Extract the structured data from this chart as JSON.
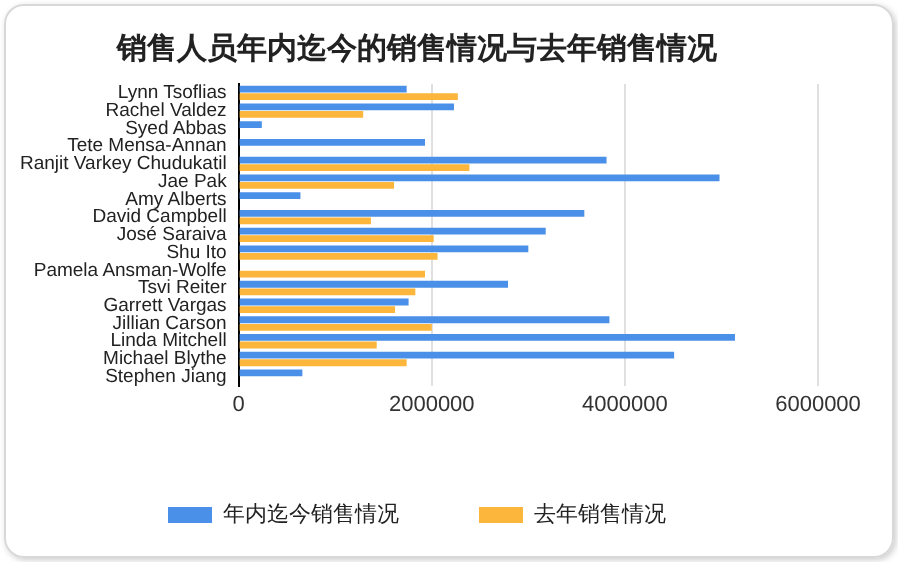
{
  "chart_data": {
    "type": "bar",
    "orientation": "horizontal",
    "title": "销售人员年内迄今的销售情况与去年销售情况",
    "categories": [
      "Lynn Tsoflias",
      "Rachel Valdez",
      "Syed Abbas",
      "Tete Mensa-Annan",
      "Ranjit Varkey Chudukatil",
      "Jae Pak",
      "Amy Alberts",
      "David Campbell",
      "José Saraiva",
      "Shu Ito",
      "Pamela Ansman-Wolfe",
      "Tsvi Reiter",
      "Garrett Vargas",
      "Jillian Carson",
      "Linda Mitchell",
      "Michael Blythe",
      "Stephen Jiang"
    ],
    "series": [
      {
        "name": "年内迄今销售情况",
        "color": "#4a8fe8",
        "values": [
          1740000,
          2230000,
          240000,
          1930000,
          3810000,
          4980000,
          640000,
          3580000,
          3180000,
          3000000,
          null,
          2790000,
          1760000,
          3840000,
          5140000,
          4510000,
          660000
        ]
      },
      {
        "name": "去年销售情况",
        "color": "#fbb63b",
        "values": [
          2270000,
          1290000,
          null,
          null,
          2390000,
          1610000,
          null,
          1370000,
          2020000,
          2060000,
          1930000,
          1830000,
          1620000,
          2000000,
          1430000,
          1740000,
          null
        ]
      }
    ],
    "xlim": [
      0,
      6000000
    ],
    "xticks": [
      0,
      2000000,
      4000000,
      6000000
    ],
    "grid": "x",
    "legend": "bottom"
  }
}
